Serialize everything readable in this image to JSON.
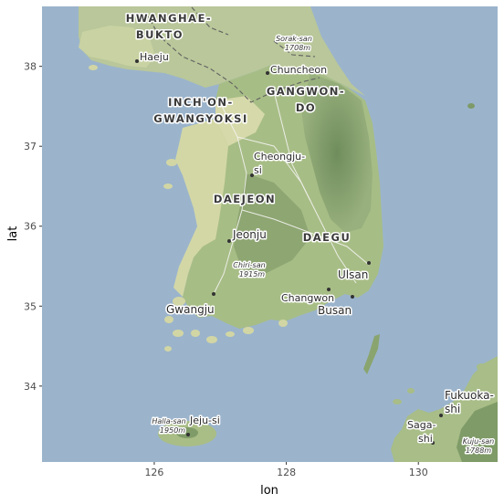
{
  "axes": {
    "x_title": "lon",
    "y_title": "lat",
    "x_ticks": [
      {
        "label": "126",
        "value": 126
      },
      {
        "label": "128",
        "value": 128
      },
      {
        "label": "130",
        "value": 130
      }
    ],
    "y_ticks": [
      {
        "label": "34",
        "value": 34
      },
      {
        "label": "35",
        "value": 35
      },
      {
        "label": "36",
        "value": 36
      },
      {
        "label": "37",
        "value": 37
      },
      {
        "label": "38",
        "value": 38
      }
    ],
    "x_range": [
      124.3,
      131.2
    ],
    "y_range": [
      33.05,
      38.75
    ]
  },
  "colors": {
    "sea": "#9bb4cc",
    "land_low": "#d9dcaa",
    "land_mid": "#a9be8a",
    "land_high": "#7e9a68",
    "border": "#606060"
  },
  "map_labels": {
    "hwanghae_1": "HWANGHAE-",
    "hwanghae_2": "BUKTO",
    "haeju": "Haeju",
    "sorak_1": "Sorak-san",
    "sorak_2": "1708m",
    "chuncheon": "Chuncheon",
    "gangwon_1": "GANGWON-",
    "gangwon_2": "DO",
    "inchon_1": "INCH'ON-",
    "inchon_2": "GWANGYOKSI",
    "cheongju_1": "Cheongju-",
    "cheongju_2": "si",
    "daejeon": "DAEJEON",
    "jeonju": "Jeonju",
    "daegu": "DAEGU",
    "chiri_1": "Chiri-san",
    "chiri_2": "1915m",
    "ulsan": "Ulsan",
    "changwon": "Changwon",
    "busan": "Busan",
    "gwangju": "Gwangju",
    "halla_1": "Halla-san",
    "halla_2": "1950m",
    "jeju": "Jeju-si",
    "fukuoka_1": "Fukuoka-",
    "fukuoka_2": "shi",
    "saga_1": "Saga-",
    "saga_2": "shi",
    "kuju_1": "Kuju-san",
    "kuju_2": "1788m"
  }
}
